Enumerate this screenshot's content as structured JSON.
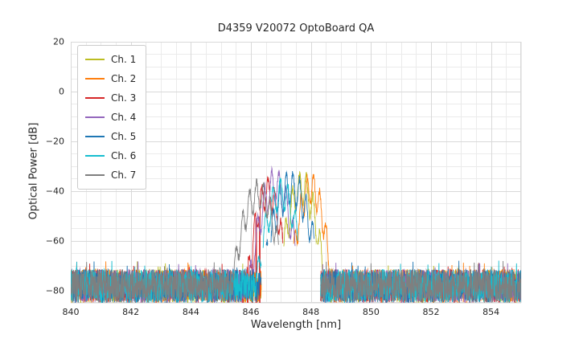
{
  "chart_data": {
    "type": "line",
    "title": "D4359 V20072 OptoBoard QA",
    "xlabel": "Wavelength [nm]",
    "ylabel": "Optical Power [dB]",
    "xlim": [
      840,
      855
    ],
    "ylim": [
      -85,
      20
    ],
    "xticks": [
      840,
      842,
      844,
      846,
      848,
      850,
      852,
      854
    ],
    "yticks": [
      -80,
      -60,
      -40,
      -20,
      0,
      20
    ],
    "grid": {
      "major": true,
      "minor": true,
      "minor_x_step_nm": 0.5,
      "minor_y_step_db": 5
    },
    "legend_position": "upper-left",
    "noise_floor_db": {
      "top": -71.5,
      "span": 13.5
    },
    "signal_region_nm": [
      845.4,
      848.5
    ],
    "gap_region_nm": [
      846.35,
      848.32
    ],
    "colors": {
      "grid_major": "#d9d9d9",
      "grid_minor": "#ebebeb",
      "frame": "#d9d9d9",
      "text": "#262626",
      "background": "#ffffff"
    },
    "series": [
      {
        "name": "Ch. 1",
        "color": "#bcbd22",
        "peak_nm": 847.7,
        "peak_db": -32.5,
        "envelope_halfwidth_nm": 0.55,
        "ripple_nm": 0.23,
        "ripple_db": 13,
        "phase": 0.7
      },
      {
        "name": "Ch. 2",
        "color": "#ff7f0e",
        "peak_nm": 848.0,
        "peak_db": -33.0,
        "envelope_halfwidth_nm": 0.5,
        "ripple_nm": 0.21,
        "ripple_db": 12,
        "phase": 2.1
      },
      {
        "name": "Ch. 3",
        "color": "#d62728",
        "peak_nm": 846.55,
        "peak_db": -35.0,
        "envelope_halfwidth_nm": 0.5,
        "ripple_nm": 0.22,
        "ripple_db": 12,
        "phase": 4.0,
        "dropouts_nm": [
          845.74,
          845.9,
          846.05,
          846.18,
          846.3
        ]
      },
      {
        "name": "Ch. 4",
        "color": "#9467bd",
        "peak_nm": 846.8,
        "peak_db": -31.5,
        "envelope_halfwidth_nm": 0.6,
        "ripple_nm": 0.24,
        "ripple_db": 13,
        "phase": 1.2
      },
      {
        "name": "Ch. 5",
        "color": "#1f77b4",
        "peak_nm": 847.35,
        "peak_db": -32.5,
        "envelope_halfwidth_nm": 0.7,
        "ripple_nm": 0.22,
        "ripple_db": 13,
        "phase": 3.3
      },
      {
        "name": "Ch. 6",
        "color": "#17becf",
        "peak_nm": 847.0,
        "peak_db": -35.0,
        "envelope_halfwidth_nm": 0.6,
        "ripple_nm": 0.25,
        "ripple_db": 12,
        "phase": 5.1
      },
      {
        "name": "Ch. 7",
        "color": "#7f7f7f",
        "peak_nm": 846.25,
        "peak_db": -36.0,
        "envelope_halfwidth_nm": 0.65,
        "ripple_nm": 0.23,
        "ripple_db": 11,
        "phase": 0.2
      }
    ]
  }
}
